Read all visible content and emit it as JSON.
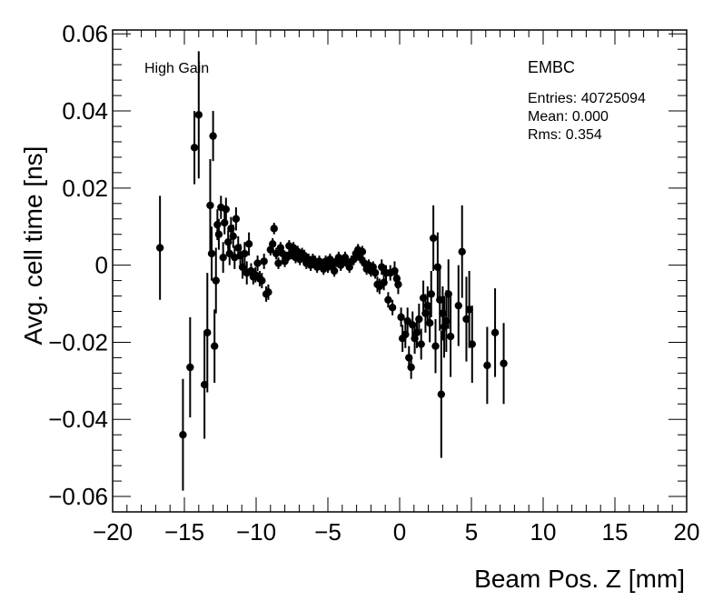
{
  "chart_data": {
    "type": "scatter",
    "title": "",
    "xlabel": "Beam Pos. Z [mm]",
    "ylabel": "Avg. cell time [ns]",
    "xlim": [
      -20,
      20
    ],
    "ylim": [
      -0.064,
      0.061
    ],
    "x_ticks": [
      -20,
      -15,
      -10,
      -5,
      0,
      5,
      10,
      15,
      20
    ],
    "x_tick_labels": [
      "−20",
      "−15",
      "−10",
      "−5",
      "0",
      "5",
      "10",
      "15",
      "20"
    ],
    "y_ticks": [
      -0.06,
      -0.04,
      -0.02,
      0,
      0.02,
      0.04,
      0.06
    ],
    "y_tick_labels": [
      "−0.06",
      "−0.04",
      "−0.02",
      "0",
      "0.02",
      "0.04",
      "0.06"
    ],
    "grid": false,
    "annotations": {
      "gain": "High Gain",
      "calorimeter": "EMBC",
      "entries": "Entries: 40725094",
      "mean": "Mean: 0.000",
      "rms": "Rms: 0.354"
    },
    "series": [
      {
        "marker": "circle",
        "color": "#000000",
        "points": [
          [
            -16.7,
            0.0045,
            0.0135
          ],
          [
            -15.1,
            -0.044,
            0.0145
          ],
          [
            -14.6,
            -0.0265,
            0.013
          ],
          [
            -14.3,
            0.0305,
            0.0095
          ],
          [
            -14.0,
            0.039,
            0.0165
          ],
          [
            -13.6,
            -0.031,
            0.014
          ],
          [
            -13.4,
            -0.0175,
            0.0155
          ],
          [
            -13.2,
            0.0155,
            0.012
          ],
          [
            -13.1,
            0.003,
            0.007
          ],
          [
            -13.0,
            0.0335,
            0.0065
          ],
          [
            -12.9,
            -0.021,
            0.0095
          ],
          [
            -12.8,
            -0.004,
            0.0085
          ],
          [
            -12.7,
            0.0105,
            0.004
          ],
          [
            -12.6,
            0.008,
            0.004
          ],
          [
            -12.45,
            0.015,
            0.003
          ],
          [
            -12.3,
            0.002,
            0.004
          ],
          [
            -12.2,
            0.011,
            0.003
          ],
          [
            -12.1,
            0.0145,
            0.003
          ],
          [
            -11.95,
            0.006,
            0.003
          ],
          [
            -11.85,
            0.003,
            0.003
          ],
          [
            -11.75,
            0.0095,
            0.003
          ],
          [
            -11.6,
            0.0075,
            0.003
          ],
          [
            -11.5,
            0.002,
            0.003
          ],
          [
            -11.4,
            0.012,
            0.003
          ],
          [
            -11.25,
            0.0045,
            0.003
          ],
          [
            -11.1,
            0.0025,
            0.003
          ],
          [
            -10.95,
            -0.0005,
            0.003
          ],
          [
            -10.8,
            0.003,
            0.003
          ],
          [
            -10.65,
            -0.002,
            0.003
          ],
          [
            -10.5,
            0.0055,
            0.003
          ],
          [
            -10.35,
            -0.0015,
            0.002
          ],
          [
            -10.2,
            -0.003,
            0.002
          ],
          [
            -10.05,
            -0.0025,
            0.002
          ],
          [
            -9.9,
            0.0005,
            0.002
          ],
          [
            -9.75,
            -0.0035,
            0.002
          ],
          [
            -9.6,
            -0.004,
            0.002
          ],
          [
            -9.45,
            0.001,
            0.002
          ],
          [
            -9.3,
            -0.0075,
            0.002
          ],
          [
            -9.15,
            -0.007,
            0.002
          ],
          [
            -9.0,
            0.004,
            0.0015
          ],
          [
            -8.85,
            0.0055,
            0.0015
          ],
          [
            -8.75,
            0.0095,
            0.0015
          ],
          [
            -8.6,
            0.003,
            0.0015
          ],
          [
            -8.45,
            0.0005,
            0.0015
          ],
          [
            -8.3,
            0.0045,
            0.0015
          ],
          [
            -8.15,
            0.003,
            0.0015
          ],
          [
            -8.0,
            0.001,
            0.0015
          ],
          [
            -7.85,
            0.002,
            0.0015
          ],
          [
            -7.7,
            0.005,
            0.0015
          ],
          [
            -7.55,
            0.003,
            0.0015
          ],
          [
            -7.4,
            0.0045,
            0.0015
          ],
          [
            -7.25,
            0.002,
            0.0015
          ],
          [
            -7.1,
            0.0035,
            0.0015
          ],
          [
            -6.95,
            0.0015,
            0.0015
          ],
          [
            -6.8,
            0.003,
            0.0015
          ],
          [
            -6.65,
            0.0025,
            0.0015
          ],
          [
            -6.5,
            0.0005,
            0.0015
          ],
          [
            -6.35,
            0.0015,
            0.0015
          ],
          [
            -6.2,
            0.0,
            0.0015
          ],
          [
            -6.05,
            0.0015,
            0.0015
          ],
          [
            -5.9,
            0.001,
            0.0015
          ],
          [
            -5.75,
            -0.0005,
            0.0015
          ],
          [
            -5.6,
            0.001,
            0.0015
          ],
          [
            -5.45,
            0.0,
            0.0015
          ],
          [
            -5.3,
            -0.001,
            0.0015
          ],
          [
            -5.15,
            0.001,
            0.0015
          ],
          [
            -5.0,
            -0.0005,
            0.0015
          ],
          [
            -4.85,
            0.0015,
            0.0015
          ],
          [
            -4.7,
            0.0,
            0.0015
          ],
          [
            -4.55,
            -0.0015,
            0.0015
          ],
          [
            -4.4,
            0.001,
            0.0015
          ],
          [
            -4.25,
            0.002,
            0.0015
          ],
          [
            -4.1,
            0.0,
            0.0015
          ],
          [
            -3.95,
            0.001,
            0.0015
          ],
          [
            -3.8,
            0.002,
            0.0015
          ],
          [
            -3.65,
            0.0005,
            0.0015
          ],
          [
            -3.5,
            -0.0005,
            0.0015
          ],
          [
            -3.35,
            0.001,
            0.0015
          ],
          [
            -3.2,
            0.0015,
            0.0015
          ],
          [
            -3.05,
            0.003,
            0.0015
          ],
          [
            -2.9,
            0.004,
            0.0015
          ],
          [
            -2.75,
            0.002,
            0.0015
          ],
          [
            -2.6,
            0.0035,
            0.0015
          ],
          [
            -2.45,
            0.0005,
            0.0015
          ],
          [
            -2.3,
            -0.001,
            0.0015
          ],
          [
            -2.15,
            0.0,
            0.0015
          ],
          [
            -2.0,
            -0.0015,
            0.0015
          ],
          [
            -1.85,
            -0.0005,
            0.0015
          ],
          [
            -1.7,
            -0.002,
            0.0015
          ],
          [
            -1.55,
            -0.005,
            0.002
          ],
          [
            -1.4,
            -0.0055,
            0.002
          ],
          [
            -1.25,
            -0.0005,
            0.002
          ],
          [
            -1.1,
            -0.0045,
            0.002
          ],
          [
            -0.95,
            -0.002,
            0.002
          ],
          [
            -0.8,
            -0.009,
            0.002
          ],
          [
            -0.65,
            -0.002,
            0.002
          ],
          [
            -0.5,
            -0.011,
            0.002
          ],
          [
            -0.35,
            -0.0015,
            0.0025
          ],
          [
            -0.2,
            -0.0035,
            0.0025
          ],
          [
            -0.1,
            -0.005,
            0.0025
          ],
          [
            0.1,
            -0.0135,
            0.0025
          ],
          [
            0.2,
            -0.019,
            0.0035
          ],
          [
            0.4,
            -0.018,
            0.0035
          ],
          [
            0.55,
            -0.0145,
            0.0035
          ],
          [
            0.65,
            -0.024,
            0.003
          ],
          [
            0.8,
            -0.0265,
            0.003
          ],
          [
            0.9,
            -0.0155,
            0.0035
          ],
          [
            1.05,
            -0.019,
            0.004
          ],
          [
            1.2,
            -0.0175,
            0.004
          ],
          [
            1.35,
            -0.014,
            0.004
          ],
          [
            1.5,
            -0.0205,
            0.004
          ],
          [
            1.65,
            -0.0085,
            0.0045
          ],
          [
            1.8,
            -0.0125,
            0.005
          ],
          [
            1.95,
            -0.0105,
            0.005
          ],
          [
            2.1,
            -0.015,
            0.005
          ],
          [
            2.2,
            -0.0075,
            0.006
          ],
          [
            2.35,
            0.007,
            0.0085
          ],
          [
            2.5,
            -0.021,
            0.007
          ],
          [
            2.65,
            -0.0005,
            0.009
          ],
          [
            2.8,
            -0.009,
            0.008
          ],
          [
            2.9,
            -0.0335,
            0.0165
          ],
          [
            3.0,
            -0.0125,
            0.007
          ],
          [
            3.1,
            -0.016,
            0.008
          ],
          [
            3.25,
            -0.0145,
            0.008
          ],
          [
            3.4,
            -0.0075,
            0.009
          ],
          [
            3.55,
            -0.0185,
            0.0105
          ],
          [
            4.1,
            -0.0105,
            0.0105
          ],
          [
            4.35,
            0.0035,
            0.012
          ],
          [
            4.65,
            -0.014,
            0.011
          ],
          [
            4.85,
            -0.0115,
            0.01
          ],
          [
            5.05,
            -0.0205,
            0.01
          ],
          [
            6.1,
            -0.026,
            0.01
          ],
          [
            6.65,
            -0.0175,
            0.0115
          ],
          [
            7.25,
            -0.0255,
            0.0105
          ]
        ]
      }
    ]
  }
}
